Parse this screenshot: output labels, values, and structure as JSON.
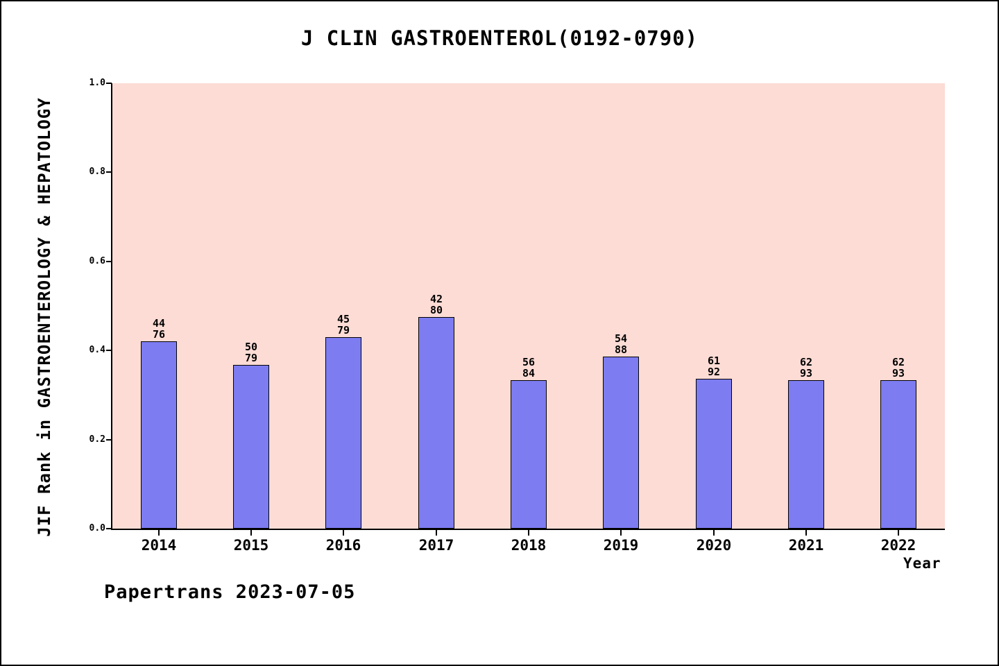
{
  "page": {
    "footer": "Papertrans 2023-07-05"
  },
  "chart_data": {
    "type": "bar",
    "title": "J CLIN GASTROENTEROL(0192-0790)",
    "xlabel": "Year",
    "ylabel": "JIF Rank in GASTROENTEROLOGY & HEPATOLOGY",
    "ylim": [
      0.0,
      1.0
    ],
    "yticks": [
      "0.0",
      "0.2",
      "0.4",
      "0.6",
      "0.8",
      "1.0"
    ],
    "grid": false,
    "legend": "none",
    "categories": [
      "2014",
      "2015",
      "2016",
      "2017",
      "2018",
      "2019",
      "2020",
      "2021",
      "2022"
    ],
    "values": [
      0.4211,
      0.3671,
      0.4304,
      0.475,
      0.3333,
      0.3864,
      0.337,
      0.3333,
      0.3333
    ],
    "bar_labels": [
      [
        "44",
        "76"
      ],
      [
        "50",
        "79"
      ],
      [
        "45",
        "79"
      ],
      [
        "42",
        "80"
      ],
      [
        "56",
        "84"
      ],
      [
        "54",
        "88"
      ],
      [
        "61",
        "92"
      ],
      [
        "62",
        "93"
      ],
      [
        "62",
        "93"
      ]
    ],
    "colors": {
      "bar": "#7d7cf1",
      "bar_edge": "#000000",
      "plot_background": "#fcdcd5",
      "axis": "#000000",
      "text": "#000000"
    }
  }
}
